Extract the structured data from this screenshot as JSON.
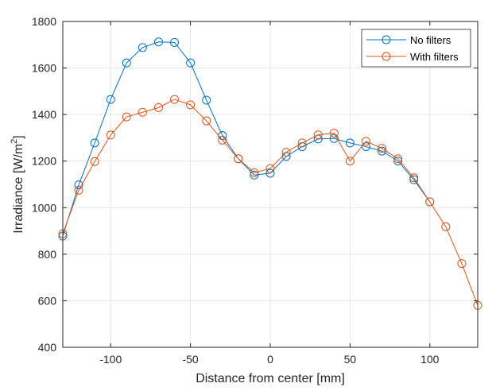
{
  "chart_data": {
    "type": "line",
    "title": "",
    "xlabel": "Distance from center [mm]",
    "ylabel_main": "Irradiance [W/m",
    "ylabel_sup": "2",
    "ylabel_end": "]",
    "xlim": [
      -130,
      130
    ],
    "ylim": [
      400,
      1800
    ],
    "xticks": [
      -100,
      -50,
      0,
      50,
      100
    ],
    "xtick_labels": [
      "-100",
      "-50",
      "0",
      "50",
      "100"
    ],
    "yticks": [
      400,
      600,
      800,
      1000,
      1200,
      1400,
      1600,
      1800
    ],
    "ytick_labels": [
      "400",
      "600",
      "800",
      "1000",
      "1200",
      "1400",
      "1600",
      "1800"
    ],
    "grid": true,
    "legend_position": "top-right",
    "series": [
      {
        "name": "No filters",
        "color": "#0072BD",
        "marker": "circle",
        "x": [
          -130,
          -120,
          -110,
          -100,
          -90,
          -80,
          -70,
          -60,
          -50,
          -40,
          -30,
          -20,
          -10,
          0,
          10,
          20,
          30,
          40,
          50,
          60,
          70,
          80,
          90,
          100
        ],
        "y": [
          878,
          1098,
          1278,
          1465,
          1622,
          1688,
          1712,
          1710,
          1622,
          1462,
          1310,
          1210,
          1140,
          1148,
          1220,
          1262,
          1295,
          1297,
          1278,
          1262,
          1243,
          1200,
          1120,
          1025
        ]
      },
      {
        "name": "With filters",
        "color": "#D95319",
        "marker": "circle",
        "x": [
          -130,
          -120,
          -110,
          -100,
          -90,
          -80,
          -70,
          -60,
          -50,
          -40,
          -30,
          -20,
          -10,
          0,
          10,
          20,
          30,
          40,
          50,
          60,
          70,
          80,
          90,
          100,
          110,
          120,
          130
        ],
        "y": [
          888,
          1075,
          1198,
          1312,
          1390,
          1410,
          1430,
          1465,
          1442,
          1373,
          1290,
          1210,
          1150,
          1168,
          1238,
          1278,
          1313,
          1320,
          1200,
          1285,
          1255,
          1210,
          1128,
          1025,
          918,
          760,
          580
        ]
      }
    ]
  }
}
